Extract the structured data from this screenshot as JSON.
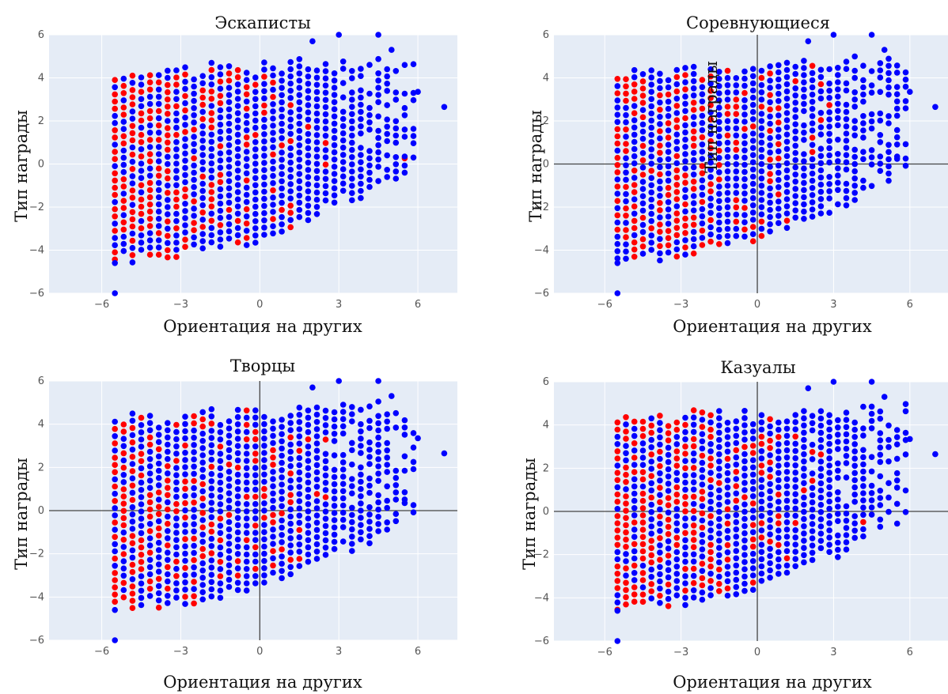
{
  "chart_data": [
    {
      "type": "scatter",
      "title": "Эскаписты",
      "xlabel": "Ориентация на других",
      "ylabel": "Тип награды",
      "xlim": [
        -8,
        7.5
      ],
      "ylim": [
        -6,
        6
      ],
      "xticks": [
        -6,
        -3,
        0,
        3,
        6
      ],
      "yticks": [
        -6,
        -4,
        -2,
        0,
        2,
        4,
        6
      ],
      "zero_lines": false,
      "grid": true,
      "marker_colors": [
        "#0000ff",
        "#ff0000"
      ],
      "seed": 11
    },
    {
      "type": "scatter",
      "title": "Соревнующиеся",
      "xlabel": "Ориентация на других",
      "ylabel": "Тип награды",
      "overlay_label": "Тип награды",
      "xlim": [
        -8,
        7.5
      ],
      "ylim": [
        -6,
        6
      ],
      "xticks": [
        -6,
        -3,
        0,
        3,
        6
      ],
      "yticks": [
        -6,
        -4,
        -2,
        0,
        2,
        4,
        6
      ],
      "zero_lines": true,
      "grid": true,
      "marker_colors": [
        "#0000ff",
        "#ff0000"
      ],
      "seed": 23
    },
    {
      "type": "scatter",
      "title": "Творцы",
      "xlabel": "Ориентация на других",
      "ylabel": "Тип награды",
      "xlim": [
        -8,
        7.5
      ],
      "ylim": [
        -6,
        6
      ],
      "xticks": [
        -6,
        -3,
        0,
        3,
        6
      ],
      "yticks": [
        -6,
        -4,
        -2,
        0,
        2,
        4,
        6
      ],
      "zero_lines": true,
      "grid": true,
      "marker_colors": [
        "#0000ff",
        "#ff0000"
      ],
      "seed": 37
    },
    {
      "type": "scatter",
      "title": "Казуалы",
      "xlabel": "Ориентация на других",
      "ylabel": "Тип награды",
      "xlim": [
        -8,
        7.5
      ],
      "ylim": [
        -6,
        6
      ],
      "xticks": [
        -6,
        -3,
        0,
        3,
        6
      ],
      "yticks": [
        -6,
        -4,
        -2,
        0,
        2,
        4,
        6
      ],
      "zero_lines": true,
      "grid": true,
      "marker_colors": [
        "#0000ff",
        "#ff0000"
      ],
      "seed": 53
    }
  ]
}
